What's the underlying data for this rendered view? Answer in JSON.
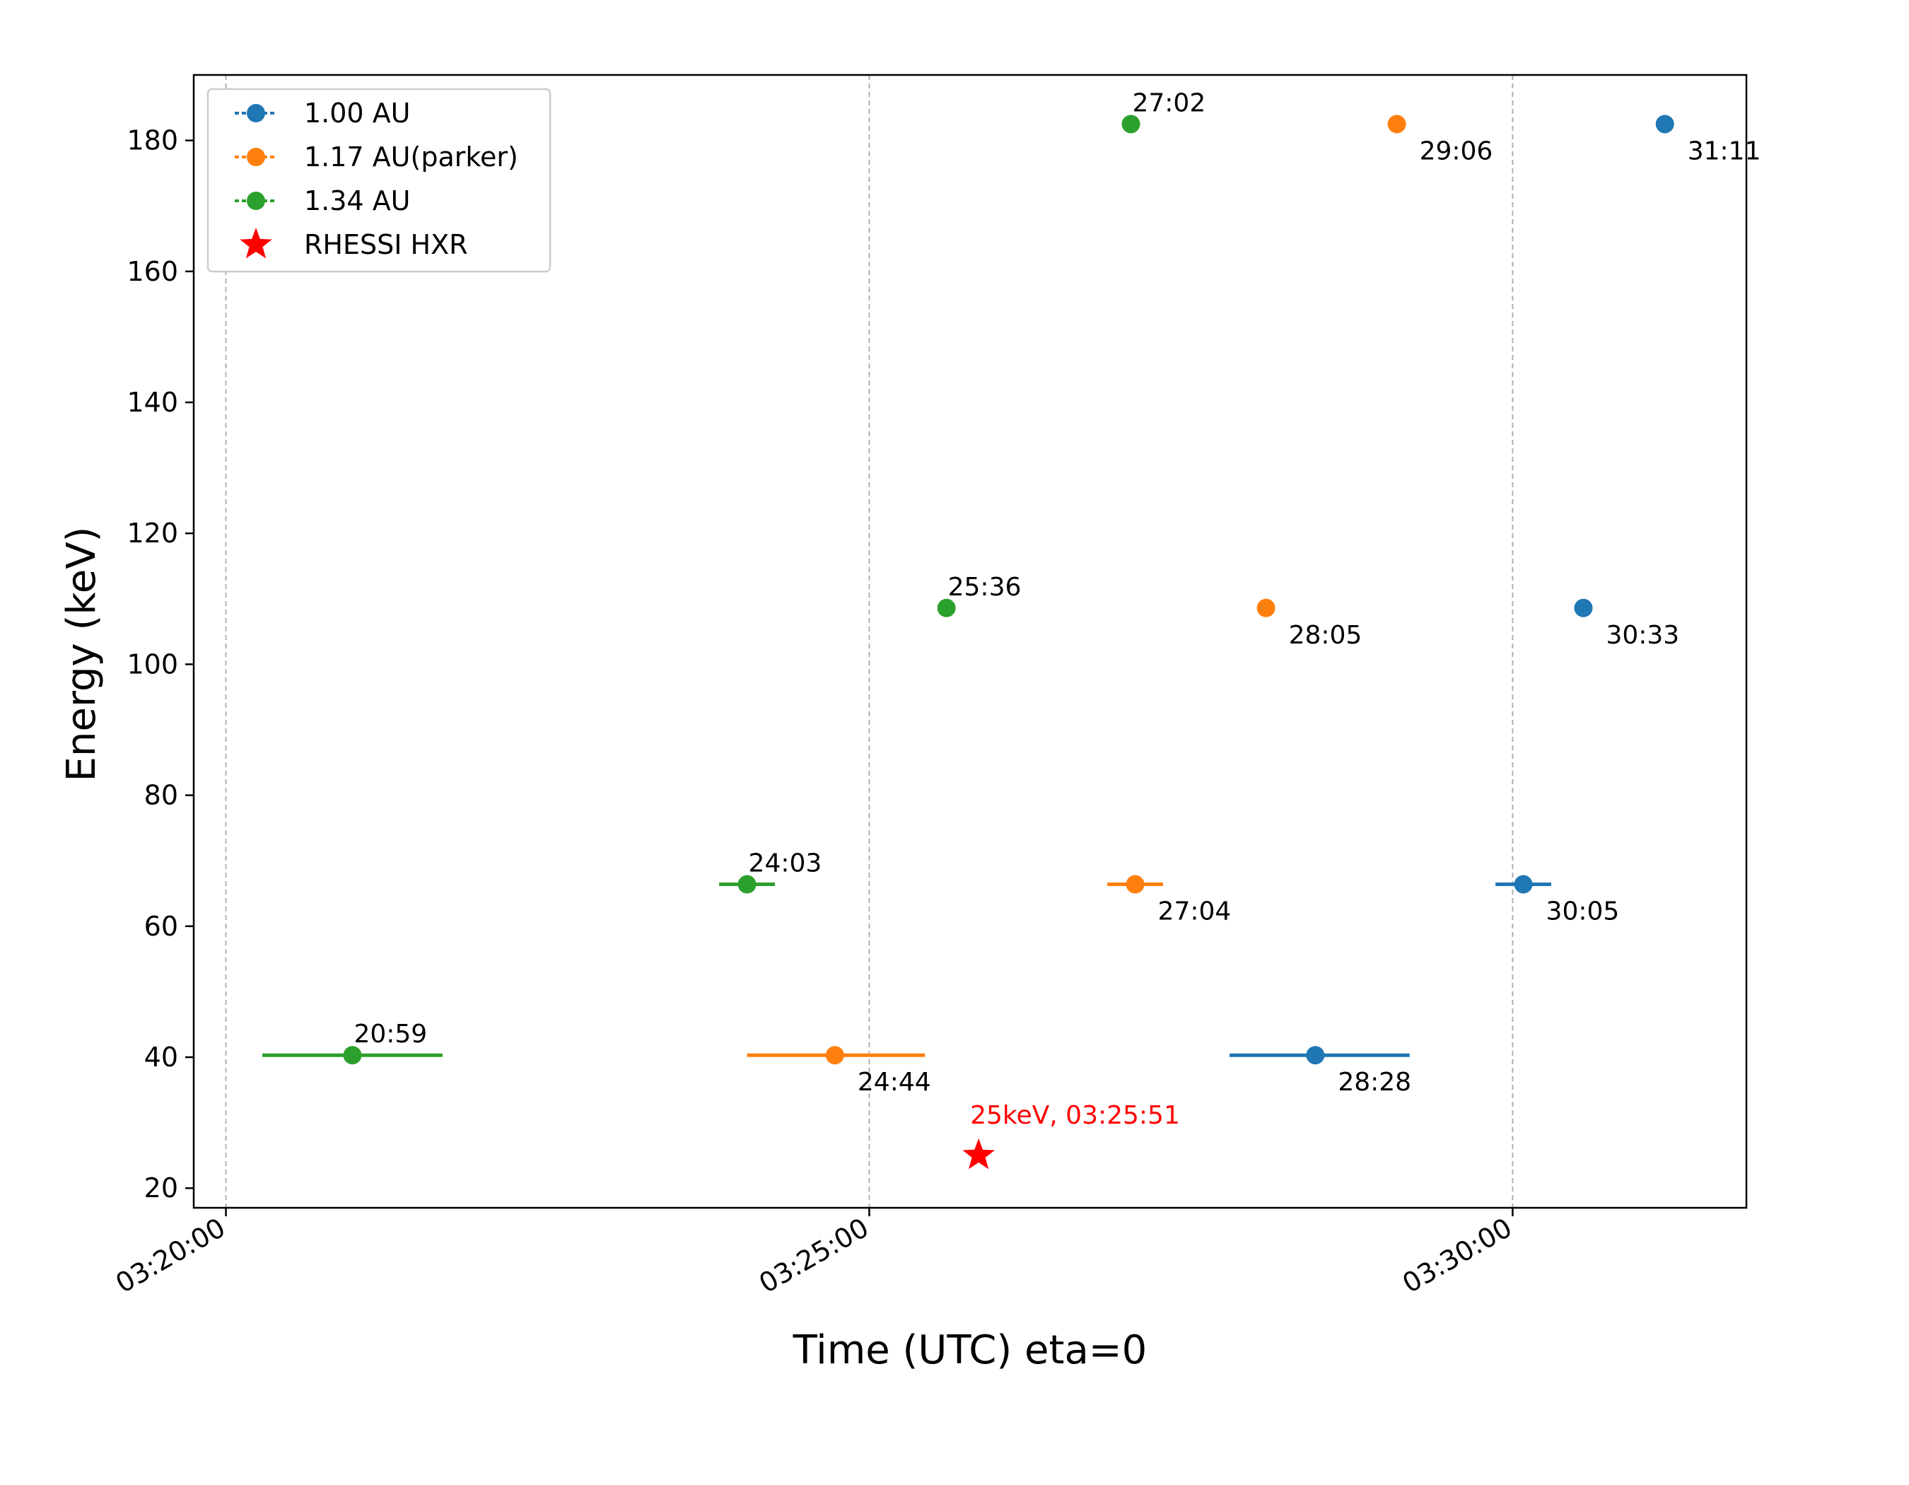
{
  "chart_data": {
    "type": "scatter",
    "xlabel": "Time (UTC) eta=0",
    "ylabel": "Energy (keV)",
    "xlim": [
      "03:19:45",
      "03:31:49"
    ],
    "ylim": [
      17,
      190
    ],
    "x_ticks": [
      "03:20:00",
      "03:25:00",
      "03:30:00"
    ],
    "y_ticks": [
      20,
      40,
      60,
      80,
      100,
      120,
      140,
      160,
      180
    ],
    "grid": "vertical dashed at x ticks",
    "legend_position": "top-left",
    "series": [
      {
        "name": "1.00 AU",
        "color": "#1f77b4",
        "points": [
          {
            "x": "03:28:28",
            "y": 40.3,
            "xerr_from": "03:27:48",
            "xerr_to": "03:29:12",
            "label": "28:28"
          },
          {
            "x": "03:30:05",
            "y": 66.4,
            "xerr_from": "03:29:52",
            "xerr_to": "03:30:18",
            "label": "30:05"
          },
          {
            "x": "03:30:33",
            "y": 108.6,
            "label": "30:33"
          },
          {
            "x": "03:31:11",
            "y": 182.5,
            "label": "31:11"
          }
        ]
      },
      {
        "name": "1.17 AU(parker)",
        "color": "#ff7f0e",
        "points": [
          {
            "x": "03:24:44",
            "y": 40.3,
            "xerr_from": "03:24:03",
            "xerr_to": "03:25:26",
            "label": "24:44"
          },
          {
            "x": "03:27:04",
            "y": 66.4,
            "xerr_from": "03:26:51",
            "xerr_to": "03:27:17",
            "label": "27:04"
          },
          {
            "x": "03:28:05",
            "y": 108.6,
            "label": "28:05"
          },
          {
            "x": "03:29:06",
            "y": 182.5,
            "label": "29:06"
          }
        ]
      },
      {
        "name": "1.34 AU",
        "color": "#2ca02c",
        "points": [
          {
            "x": "03:20:59",
            "y": 40.3,
            "xerr_from": "03:20:17",
            "xerr_to": "03:21:41",
            "label": "20:59"
          },
          {
            "x": "03:24:03",
            "y": 66.4,
            "xerr_from": "03:23:50",
            "xerr_to": "03:24:16",
            "label": "24:03"
          },
          {
            "x": "03:25:36",
            "y": 108.6,
            "label": "25:36"
          },
          {
            "x": "03:27:02",
            "y": 182.5,
            "label": "27:02"
          }
        ]
      }
    ],
    "marker_series": {
      "name": "RHESSI HXR",
      "color": "#ff0000",
      "x": "03:25:51",
      "y": 25,
      "label": "25keV, 03:25:51"
    }
  }
}
